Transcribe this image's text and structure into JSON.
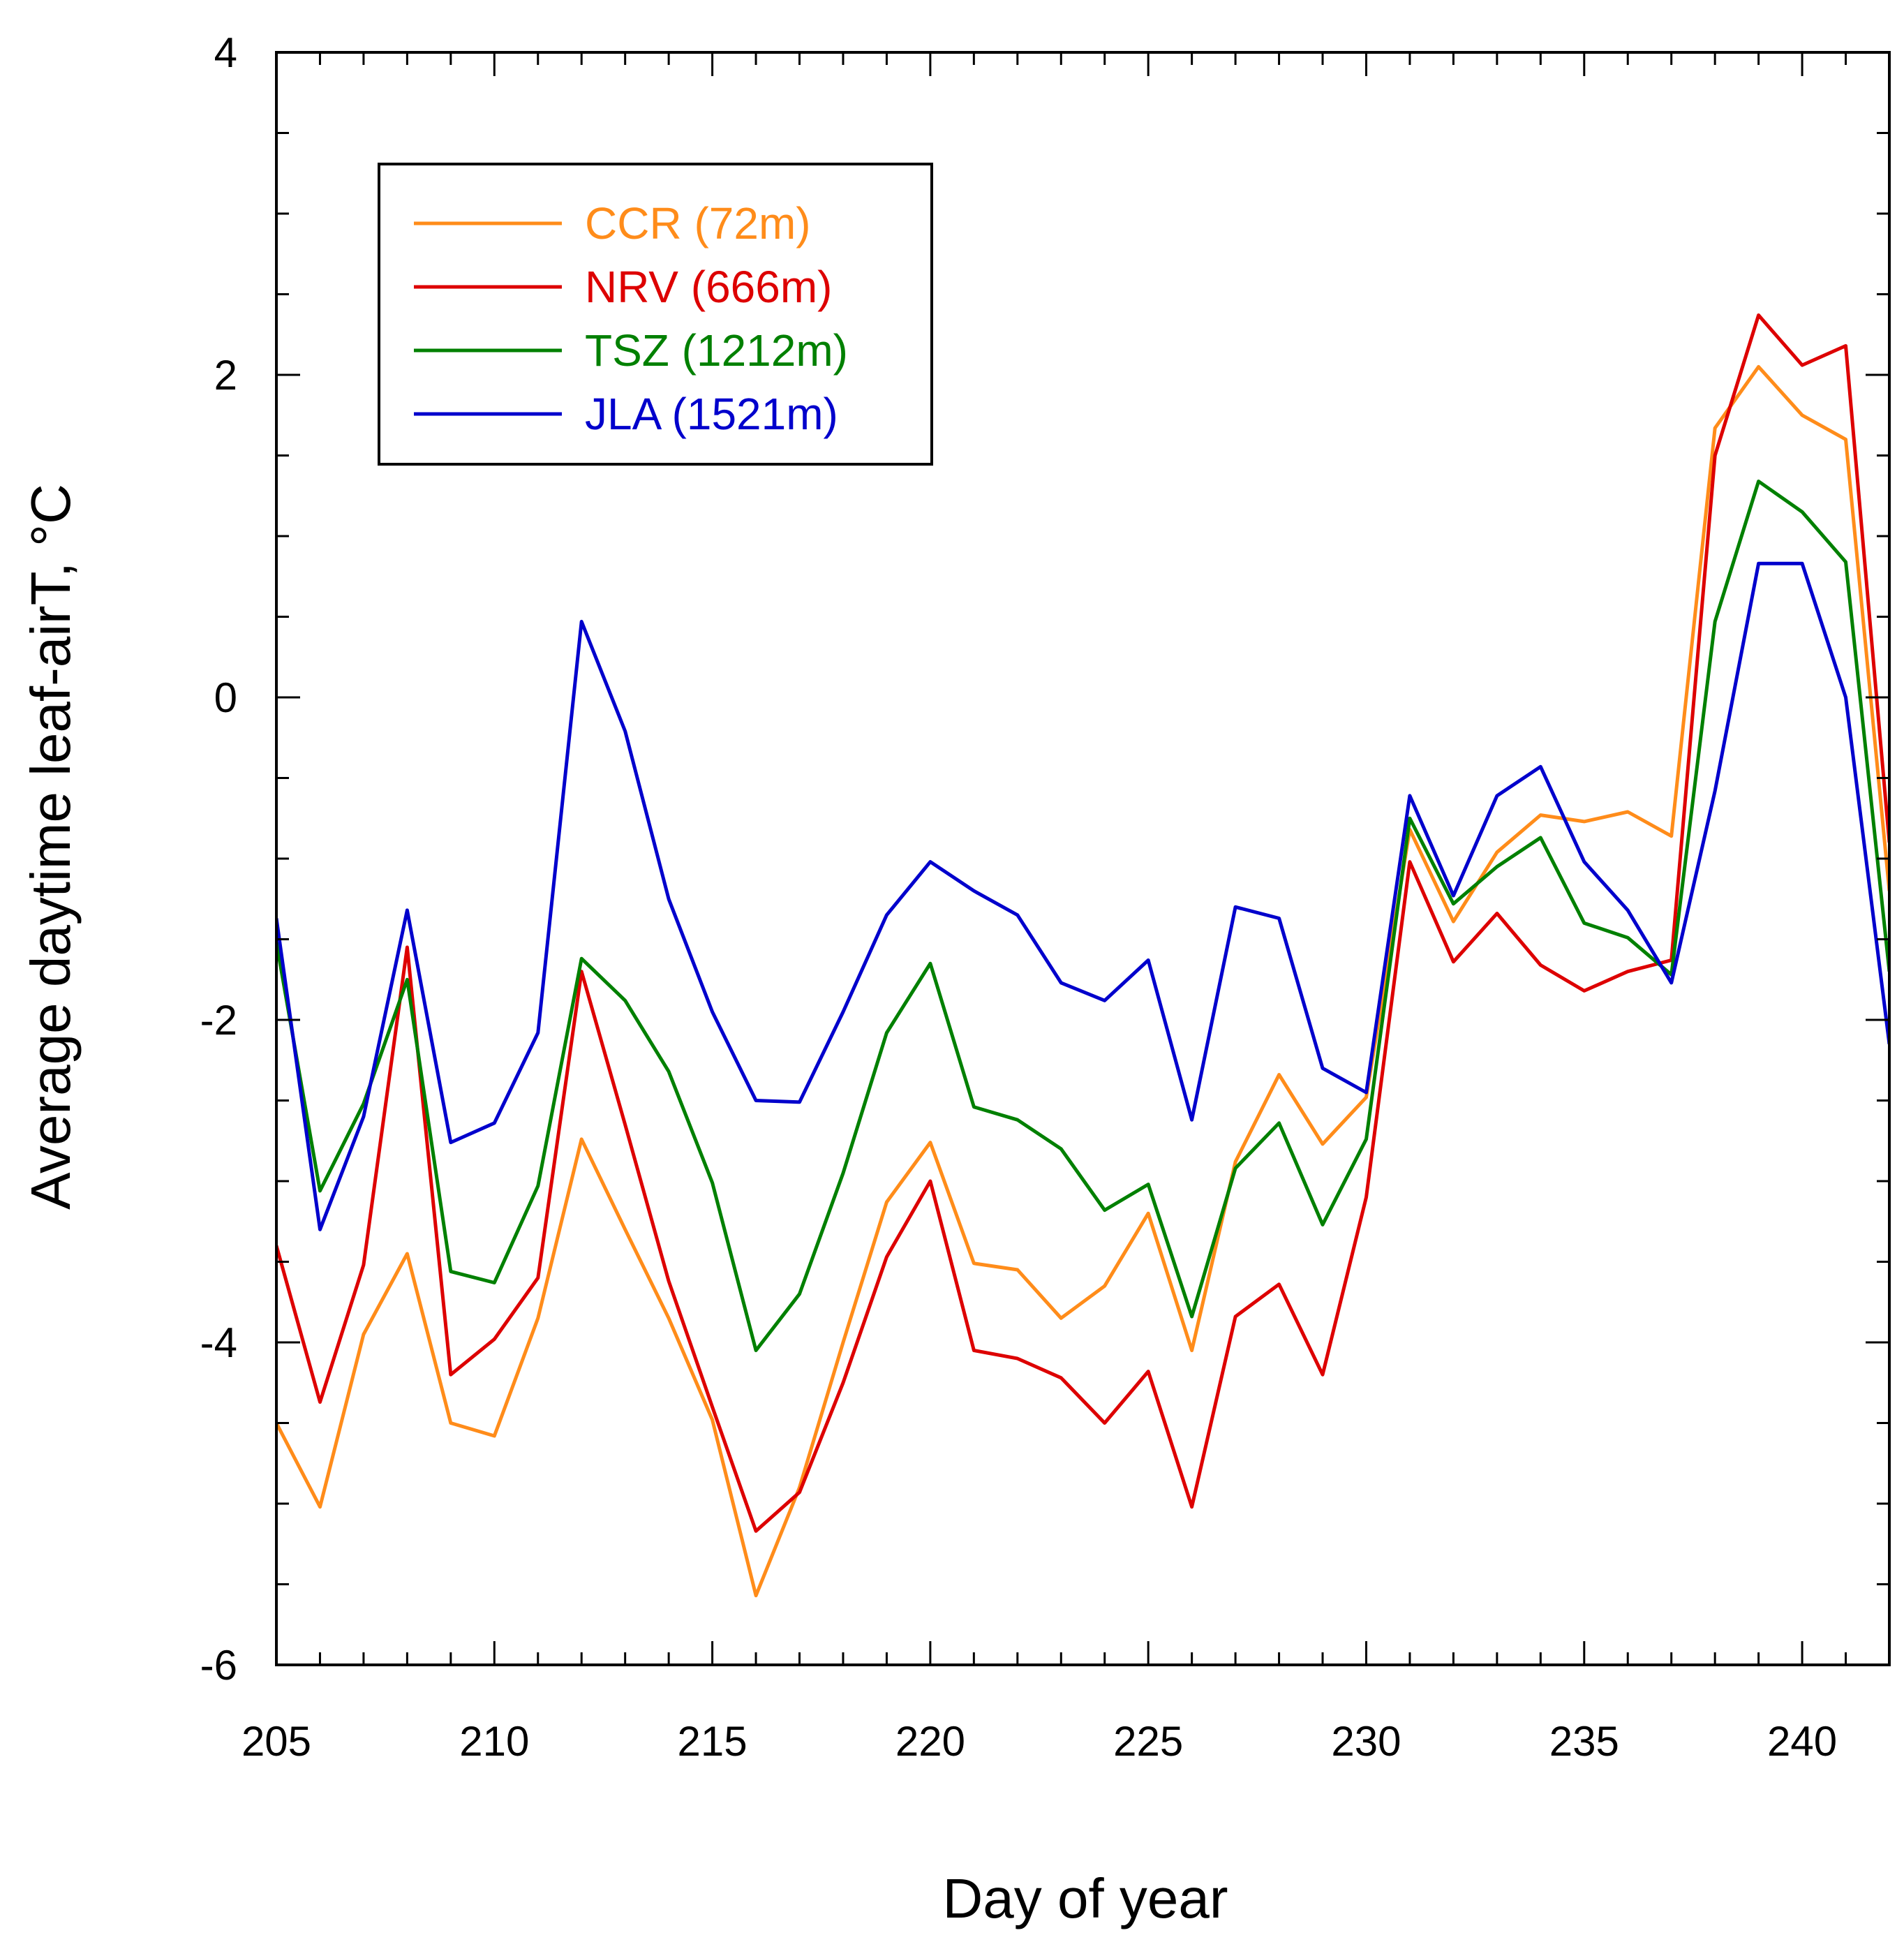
{
  "chart_data": {
    "type": "line",
    "title": "",
    "xlabel": "Day of year",
    "ylabel": "Average daytime leaf-airT, °C",
    "xlim": [
      205,
      242
    ],
    "ylim": [
      -6,
      4
    ],
    "xticks": [
      205,
      210,
      215,
      220,
      225,
      230,
      235,
      240
    ],
    "xtick_labels": [
      "205",
      "210",
      "215",
      "220",
      "225",
      "230",
      "235",
      "240"
    ],
    "yticks": [
      -6,
      -4,
      -2,
      0,
      2,
      4
    ],
    "ytick_labels": [
      "-6",
      "-4",
      "-2",
      "0",
      "2",
      "4"
    ],
    "grid": false,
    "legend_position": "top-left",
    "x": [
      205,
      206,
      207,
      208,
      209,
      210,
      211,
      212,
      213,
      214,
      215,
      216,
      217,
      218,
      219,
      220,
      221,
      222,
      223,
      224,
      225,
      226,
      227,
      228,
      229,
      230,
      231,
      232,
      233,
      234,
      235,
      236,
      237,
      238,
      239,
      240,
      241,
      242
    ],
    "series": [
      {
        "name": "CCR (72m)",
        "color": "#ff8c1a",
        "values": [
          -4.5,
          -5.02,
          -3.95,
          -3.45,
          -4.5,
          -4.58,
          -3.85,
          -2.74,
          -3.3,
          -3.85,
          -4.48,
          -5.57,
          -4.9,
          -4.0,
          -3.13,
          -2.76,
          -3.51,
          -3.55,
          -3.85,
          -3.65,
          -3.2,
          -4.05,
          -2.88,
          -2.34,
          -2.77,
          -2.48,
          -0.82,
          -1.39,
          -0.96,
          -0.73,
          -0.77,
          -0.71,
          -0.86,
          1.67,
          2.05,
          1.75,
          1.6,
          -1.2
        ]
      },
      {
        "name": "NRV (666m)",
        "color": "#dd0000",
        "values": [
          -3.4,
          -4.37,
          -3.52,
          -1.55,
          -4.2,
          -3.98,
          -3.6,
          -1.7,
          -2.65,
          -3.62,
          -4.4,
          -5.17,
          -4.93,
          -4.25,
          -3.47,
          -3.0,
          -4.05,
          -4.1,
          -4.22,
          -4.5,
          -4.18,
          -5.02,
          -3.84,
          -3.64,
          -4.2,
          -3.1,
          -1.02,
          -1.64,
          -1.34,
          -1.66,
          -1.82,
          -1.7,
          -1.63,
          1.5,
          2.37,
          2.06,
          2.18,
          -0.9
        ]
      },
      {
        "name": "TSZ (1212m)",
        "color": "#008000",
        "values": [
          -1.52,
          -3.06,
          -2.52,
          -1.75,
          -3.56,
          -3.63,
          -3.03,
          -1.62,
          -1.88,
          -2.32,
          -3.01,
          -4.05,
          -3.7,
          -2.95,
          -2.08,
          -1.65,
          -2.54,
          -2.62,
          -2.8,
          -3.18,
          -3.02,
          -3.84,
          -2.92,
          -2.64,
          -3.27,
          -2.74,
          -0.75,
          -1.28,
          -1.05,
          -0.87,
          -1.4,
          -1.49,
          -1.72,
          0.47,
          1.34,
          1.15,
          0.84,
          -1.7
        ]
      },
      {
        "name": "JLA (1521m)",
        "color": "#0000cc",
        "values": [
          -1.37,
          -3.3,
          -2.6,
          -1.32,
          -2.76,
          -2.64,
          -2.08,
          0.47,
          -0.21,
          -1.25,
          -1.95,
          -2.5,
          -2.51,
          -1.95,
          -1.35,
          -1.02,
          -1.2,
          -1.35,
          -1.77,
          -1.88,
          -1.63,
          -2.62,
          -1.3,
          -1.37,
          -2.3,
          -2.45,
          -0.61,
          -1.23,
          -0.61,
          -0.43,
          -1.02,
          -1.32,
          -1.77,
          -0.58,
          0.83,
          0.83,
          0.0,
          -2.15
        ]
      }
    ]
  }
}
